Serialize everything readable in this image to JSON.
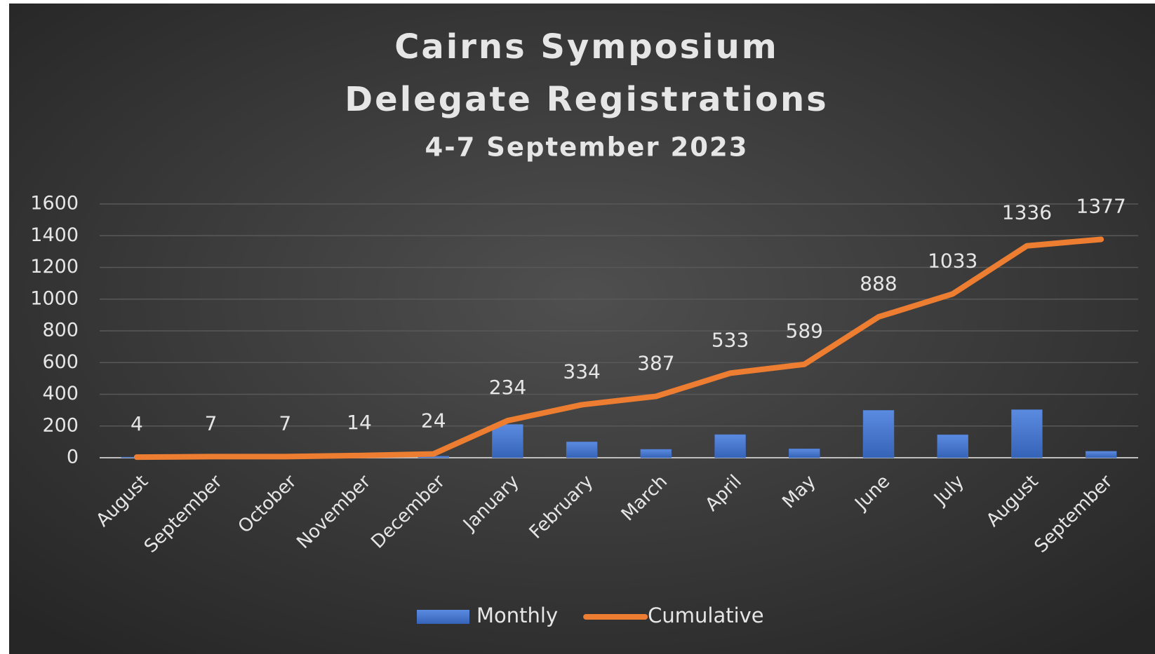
{
  "chart_data": {
    "type": "bar+line",
    "title": [
      "Cairns Symposium",
      "Delegate Registrations"
    ],
    "subtitle": "4-7 September 2023",
    "categories": [
      "August",
      "September",
      "October",
      "November",
      "December",
      "January",
      "February",
      "March",
      "April",
      "May",
      "June",
      "July",
      "August",
      "September"
    ],
    "series": [
      {
        "name": "Monthly",
        "type": "bar",
        "color": "#4472c4",
        "values": [
          4,
          3,
          0,
          7,
          10,
          210,
          100,
          53,
          146,
          56,
          299,
          145,
          303,
          41
        ]
      },
      {
        "name": "Cumulative",
        "type": "line",
        "color": "#ed7d31",
        "values": [
          4,
          7,
          7,
          14,
          24,
          234,
          334,
          387,
          533,
          589,
          888,
          1033,
          1336,
          1377
        ]
      }
    ],
    "ylim": [
      0,
      1600
    ],
    "yticks": [
      0,
      200,
      400,
      600,
      800,
      1000,
      1200,
      1400,
      1600
    ],
    "grid": true,
    "legend": "bottom"
  }
}
